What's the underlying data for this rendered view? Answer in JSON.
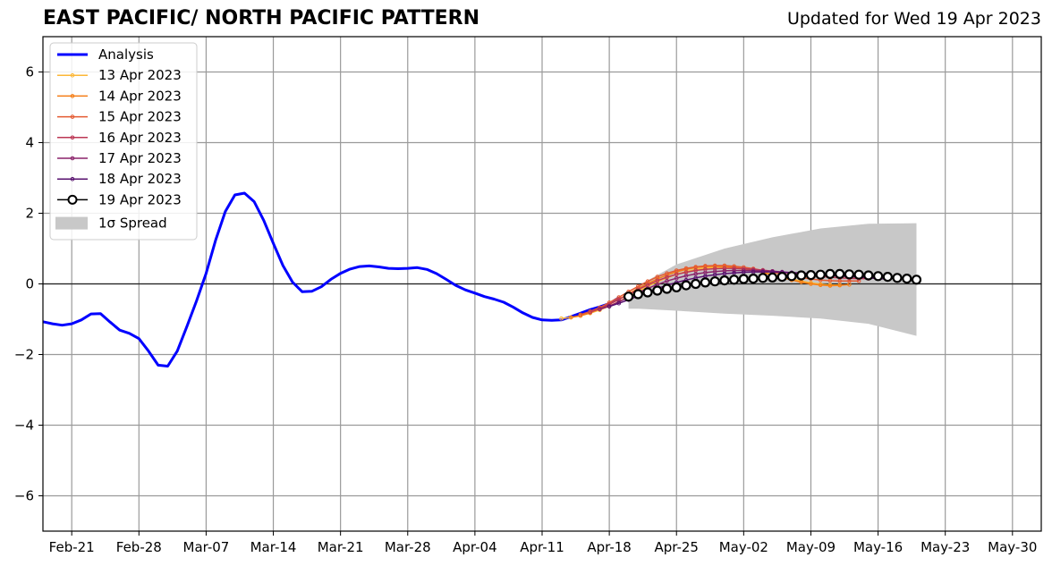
{
  "chart_data": {
    "type": "line",
    "title": "EAST PACIFIC/ NORTH PACIFIC PATTERN",
    "subtitle": "Updated for Wed 19 Apr 2023",
    "xlabel": "",
    "ylabel": "",
    "xlim": [
      "2023-02-18",
      "2023-06-02"
    ],
    "ylim": [
      -7,
      7
    ],
    "yticks": [
      -6,
      -4,
      -2,
      0,
      2,
      4,
      6
    ],
    "ytick_labels": [
      "−6",
      "−4",
      "−2",
      "0",
      "2",
      "4",
      "6"
    ],
    "xticks": [
      "2023-02-21",
      "2023-02-28",
      "2023-03-07",
      "2023-03-14",
      "2023-03-21",
      "2023-03-28",
      "2023-04-04",
      "2023-04-11",
      "2023-04-18",
      "2023-04-25",
      "2023-05-02",
      "2023-05-09",
      "2023-05-16",
      "2023-05-23",
      "2023-05-30"
    ],
    "xtick_labels": [
      "Feb-21",
      "Feb-28",
      "Mar-07",
      "Mar-14",
      "Mar-21",
      "Mar-28",
      "Apr-04",
      "Apr-11",
      "Apr-18",
      "Apr-25",
      "May-02",
      "May-09",
      "May-16",
      "May-23",
      "May-30"
    ],
    "grid": true,
    "legend_position": "top-left",
    "analysis": {
      "name": "Analysis",
      "color": "#0000ff",
      "x": [
        "2023-02-18",
        "2023-02-19",
        "2023-02-20",
        "2023-02-21",
        "2023-02-22",
        "2023-02-23",
        "2023-02-24",
        "2023-02-25",
        "2023-02-26",
        "2023-02-27",
        "2023-02-28",
        "2023-03-01",
        "2023-03-02",
        "2023-03-03",
        "2023-03-04",
        "2023-03-05",
        "2023-03-06",
        "2023-03-07",
        "2023-03-08",
        "2023-03-09",
        "2023-03-10",
        "2023-03-11",
        "2023-03-12",
        "2023-03-13",
        "2023-03-14",
        "2023-03-15",
        "2023-03-16",
        "2023-03-17",
        "2023-03-18",
        "2023-03-19",
        "2023-03-20",
        "2023-03-21",
        "2023-03-22",
        "2023-03-23",
        "2023-03-24",
        "2023-03-25",
        "2023-03-26",
        "2023-03-27",
        "2023-03-28",
        "2023-03-29",
        "2023-03-30",
        "2023-03-31",
        "2023-04-01",
        "2023-04-02",
        "2023-04-03",
        "2023-04-04",
        "2023-04-05",
        "2023-04-06",
        "2023-04-07",
        "2023-04-08",
        "2023-04-09",
        "2023-04-10",
        "2023-04-11",
        "2023-04-12",
        "2023-04-13",
        "2023-04-14",
        "2023-04-15",
        "2023-04-16",
        "2023-04-17",
        "2023-04-18",
        "2023-04-19"
      ],
      "y": [
        -1.07,
        -1.13,
        -1.17,
        -1.13,
        -1.02,
        -0.85,
        -0.84,
        -1.08,
        -1.31,
        -1.4,
        -1.55,
        -1.9,
        -2.3,
        -2.33,
        -1.9,
        -1.2,
        -0.48,
        0.3,
        1.25,
        2.05,
        2.52,
        2.57,
        2.33,
        1.8,
        1.15,
        0.52,
        0.05,
        -0.22,
        -0.21,
        -0.08,
        0.13,
        0.3,
        0.42,
        0.49,
        0.51,
        0.48,
        0.44,
        0.43,
        0.44,
        0.46,
        0.41,
        0.29,
        0.13,
        -0.04,
        -0.17,
        -0.26,
        -0.36,
        -0.43,
        -0.52,
        -0.66,
        -0.82,
        -0.95,
        -1.02,
        -1.03,
        -1.02,
        -0.93,
        -0.83,
        -0.73,
        -0.65,
        -0.56,
        -0.39
      ]
    },
    "forecasts": [
      {
        "name": "13 Apr 2023",
        "color": "#fcb737",
        "start": "2023-04-13",
        "y": [
          -0.98,
          -0.95,
          -0.9,
          -0.83,
          -0.74,
          -0.63,
          -0.5,
          -0.36,
          -0.21,
          -0.07,
          0.06,
          0.17,
          0.27,
          0.35,
          0.41,
          0.45,
          0.47,
          0.47,
          0.45,
          0.42,
          0.38,
          0.33,
          0.27,
          0.21,
          0.14,
          0.08,
          0.03,
          -0.01,
          -0.03,
          -0.03
        ]
      },
      {
        "name": "14 Apr 2023",
        "color": "#f57d15",
        "start": "2023-04-14",
        "y": [
          -0.95,
          -0.9,
          -0.82,
          -0.71,
          -0.58,
          -0.43,
          -0.28,
          -0.13,
          0.01,
          0.14,
          0.25,
          0.34,
          0.41,
          0.46,
          0.49,
          0.5,
          0.49,
          0.47,
          0.43,
          0.38,
          0.32,
          0.25,
          0.18,
          0.11,
          0.05,
          0.0,
          -0.03,
          -0.05,
          -0.04,
          -0.02
        ]
      },
      {
        "name": "15 Apr 2023",
        "color": "#e45a31",
        "start": "2023-04-15",
        "y": [
          -0.87,
          -0.78,
          -0.67,
          -0.53,
          -0.38,
          -0.22,
          -0.07,
          0.07,
          0.2,
          0.3,
          0.38,
          0.44,
          0.48,
          0.51,
          0.52,
          0.52,
          0.5,
          0.47,
          0.43,
          0.38,
          0.33,
          0.28,
          0.23,
          0.18,
          0.14,
          0.11,
          0.09,
          0.08,
          0.08,
          0.08
        ]
      },
      {
        "name": "16 Apr 2023",
        "color": "#bc3754",
        "start": "2023-04-16",
        "y": [
          -0.8,
          -0.7,
          -0.58,
          -0.44,
          -0.3,
          -0.16,
          -0.03,
          0.09,
          0.19,
          0.27,
          0.33,
          0.38,
          0.41,
          0.43,
          0.44,
          0.44,
          0.43,
          0.41,
          0.39,
          0.36,
          0.33,
          0.3,
          0.27,
          0.24,
          0.21,
          0.19,
          0.17,
          0.16,
          0.15,
          0.15
        ]
      },
      {
        "name": "17 Apr 2023",
        "color": "#8a226a",
        "start": "2023-04-17",
        "y": [
          -0.72,
          -0.63,
          -0.51,
          -0.38,
          -0.25,
          -0.13,
          -0.02,
          0.08,
          0.16,
          0.23,
          0.28,
          0.32,
          0.35,
          0.37,
          0.38,
          0.38,
          0.38,
          0.37,
          0.36,
          0.34,
          0.32,
          0.3,
          0.28,
          0.26,
          0.24,
          0.22,
          0.21,
          0.2,
          0.19,
          0.19
        ]
      },
      {
        "name": "18 Apr 2023",
        "color": "#57106e",
        "start": "2023-04-18",
        "y": [
          -0.64,
          -0.55,
          -0.45,
          -0.34,
          -0.23,
          -0.13,
          -0.04,
          0.04,
          0.11,
          0.17,
          0.22,
          0.26,
          0.29,
          0.31,
          0.33,
          0.34,
          0.34,
          0.34,
          0.33,
          0.32,
          0.31,
          0.29,
          0.27,
          0.25,
          0.23,
          0.21,
          0.19,
          0.17,
          0.15,
          0.14
        ]
      },
      {
        "name": "19 Apr 2023",
        "color": "#000000",
        "start": "2023-04-20",
        "y": [
          -0.36,
          -0.29,
          -0.24,
          -0.19,
          -0.14,
          -0.1,
          -0.04,
          0.0,
          0.04,
          0.07,
          0.1,
          0.12,
          0.14,
          0.15,
          0.17,
          0.18,
          0.2,
          0.22,
          0.24,
          0.25,
          0.26,
          0.28,
          0.28,
          0.27,
          0.26,
          0.24,
          0.22,
          0.2,
          0.17,
          0.15,
          0.12
        ]
      }
    ],
    "spread": {
      "name": "1σ Spread",
      "color": "#c8c8c8",
      "x": [
        "2023-04-20",
        "2023-04-21",
        "2023-04-25",
        "2023-04-30",
        "2023-05-05",
        "2023-05-10",
        "2023-05-15",
        "2023-05-20"
      ],
      "upper": [
        -0.35,
        -0.05,
        0.55,
        1.0,
        1.32,
        1.57,
        1.7,
        1.72
      ],
      "lower": [
        -0.7,
        -0.7,
        -0.76,
        -0.84,
        -0.9,
        -0.98,
        -1.13,
        -1.47
      ]
    }
  }
}
